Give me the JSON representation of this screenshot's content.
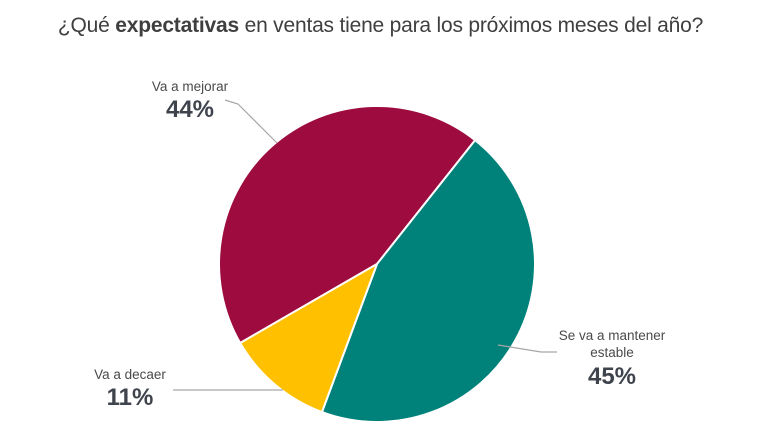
{
  "title": {
    "prefix": "¿Qué ",
    "bold": "expectativas",
    "suffix": " en ventas tiene para los próximos meses del año?"
  },
  "colors": {
    "title_text": "#3F3F3F",
    "label_text": "#4A4A4A",
    "percent_text": "#3E434C",
    "leader_line": "#A6A6A6",
    "slice_separator": "#FFFFFF",
    "background": "#FFFFFF"
  },
  "chart_data": {
    "type": "pie",
    "title": "¿Qué expectativas en ventas tiene para los próximos meses del año?",
    "start_angle_deg_clockwise_from_top": 240,
    "legend_position": "outside-callouts",
    "segments": [
      {
        "label": "Va a mejorar",
        "value_pct": 44,
        "color": "#9E0B3E"
      },
      {
        "label": "Se va a mantener estable",
        "value_pct": 45,
        "color": "#00827B"
      },
      {
        "label": "Va a decaer",
        "value_pct": 11,
        "color": "#FFC000"
      }
    ]
  },
  "labels": {
    "mejorar": {
      "text": "Va a mejorar",
      "pct": "44%"
    },
    "mantener": {
      "line1": "Se va a mantener",
      "line2": "estable",
      "pct": "45%"
    },
    "decaer": {
      "text": "Va a decaer",
      "pct": "11%"
    }
  }
}
